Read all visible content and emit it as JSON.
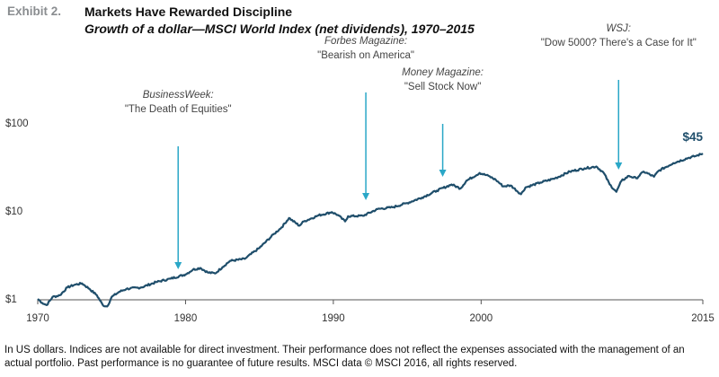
{
  "header": {
    "exhibit_label": "Exhibit 2.",
    "title": "Markets Have Rewarded Discipline",
    "subtitle": "Growth of a dollar—MSCI World Index (net dividends), 1970–2015"
  },
  "footnote": "In US dollars. Indices are not available for direct investment. Their performance does not reflect the expenses associated with the management of an actual portfolio. Past performance is no guarantee of future results. MSCI data © MSCI 2016, all rights reserved.",
  "colors": {
    "line": "#1f4e6b",
    "arrow": "#2aa7c7",
    "axis": "#555555",
    "label": "#1f4e6b",
    "annotation": "#444444"
  },
  "chart_data": {
    "type": "line",
    "title": "Growth of a dollar—MSCI World Index (net dividends), 1970–2015",
    "xlabel": "",
    "ylabel": "",
    "yscale": "log",
    "ylim": [
      1,
      100
    ],
    "xlim": [
      1970,
      2015
    ],
    "x_ticks": [
      "1970",
      "1980",
      "1990",
      "2000",
      "2015"
    ],
    "x_tick_values": [
      1970,
      1980,
      1990,
      2000,
      2015
    ],
    "y_ticks": [
      "$1",
      "$10",
      "$100"
    ],
    "y_tick_values": [
      1,
      10,
      100
    ],
    "end_label": "$45",
    "series": [
      {
        "name": "MSCI World Index (net dividends)",
        "x": [
          1970,
          1970.3,
          1970.6,
          1971,
          1971.5,
          1972,
          1972.5,
          1973,
          1973.5,
          1974,
          1974.4,
          1974.7,
          1975,
          1975.5,
          1976,
          1977,
          1978,
          1979,
          1980,
          1980.5,
          1981,
          1981.5,
          1982,
          1982.5,
          1983,
          1984,
          1985,
          1986,
          1986.5,
          1987,
          1987.7,
          1988,
          1989,
          1989.9,
          1990.3,
          1990.8,
          1991,
          1992,
          1993,
          1994,
          1995,
          1996,
          1997,
          1998,
          1998.6,
          1999,
          1999.9,
          2000.5,
          2001,
          2001.5,
          2002,
          2002.7,
          2003,
          2004,
          2005,
          2006,
          2007,
          2007.8,
          2008.3,
          2008.7,
          2009.15,
          2009.5,
          2010,
          2010.5,
          2011,
          2011.7,
          2012,
          2013,
          2014,
          2014.5,
          2015
        ],
        "values": [
          1.0,
          0.9,
          0.85,
          1.05,
          1.1,
          1.35,
          1.45,
          1.5,
          1.3,
          1.1,
          0.85,
          0.82,
          1.05,
          1.2,
          1.3,
          1.35,
          1.55,
          1.7,
          1.9,
          2.15,
          2.25,
          2.0,
          1.95,
          2.3,
          2.7,
          2.85,
          3.8,
          5.5,
          6.5,
          8.3,
          6.8,
          7.6,
          8.9,
          9.7,
          9.0,
          7.6,
          8.7,
          8.8,
          10.5,
          11.0,
          12.3,
          14.2,
          17.0,
          20.0,
          18.0,
          22.0,
          27.0,
          25.0,
          22.5,
          19.0,
          19.5,
          15.5,
          18.5,
          21.0,
          23.5,
          28.0,
          30.5,
          32.0,
          27.0,
          20.0,
          16.5,
          22.0,
          25.0,
          23.5,
          28.0,
          24.5,
          28.5,
          35.0,
          40.0,
          42.0,
          45.0
        ]
      }
    ],
    "annotations": [
      {
        "x": 1979.5,
        "source": "BusinessWeek:",
        "headline": "\"The Death of Equities\""
      },
      {
        "x": 1992.2,
        "source": "Forbes Magazine:",
        "headline": "\"Bearish on America\""
      },
      {
        "x": 1997.4,
        "source": "Money Magazine:",
        "headline": "\"Sell Stock Now\""
      },
      {
        "x": 2009.3,
        "source": "WSJ:",
        "headline": "\"Dow 5000? There's a Case for It\""
      }
    ]
  }
}
